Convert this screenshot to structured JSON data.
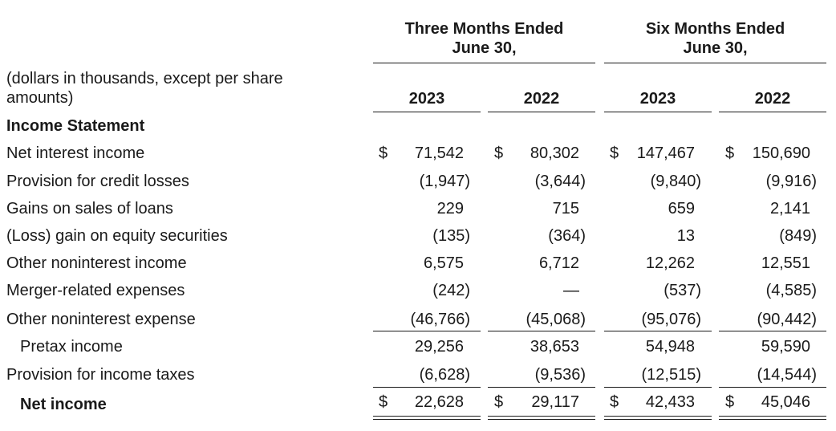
{
  "header": {
    "three_months": "Three Months Ended\nJune 30,",
    "three_months_line1": "Three Months Ended",
    "three_months_line2": "June 30,",
    "six_months_line1": "Six Months Ended",
    "six_months_line2": "June 30,",
    "units_line1": "(dollars in thousands, except per share",
    "units_line2": "amounts)",
    "years": [
      "2023",
      "2022",
      "2023",
      "2022"
    ]
  },
  "section_title": "Income Statement",
  "currency_symbol": "$",
  "rows": [
    {
      "label": "Net interest income",
      "values": [
        "71,542",
        "80,302",
        "147,467",
        "150,690"
      ]
    },
    {
      "label": "Provision for credit losses",
      "values": [
        "(1,947)",
        "(3,644)",
        "(9,840)",
        "(9,916)"
      ]
    },
    {
      "label": "Gains on sales of loans",
      "values": [
        "229",
        "715",
        "659",
        "2,141"
      ]
    },
    {
      "label": "(Loss) gain on equity securities",
      "values": [
        "(135)",
        "(364)",
        "13",
        "(849)"
      ]
    },
    {
      "label": "Other noninterest income",
      "values": [
        "6,575",
        "6,712",
        "12,262",
        "12,551"
      ]
    },
    {
      "label": "Merger-related expenses",
      "values": [
        "(242)",
        "—",
        "(537)",
        "(4,585)"
      ]
    },
    {
      "label": "Other noninterest expense",
      "values": [
        "(46,766)",
        "(45,068)",
        "(95,076)",
        "(90,442)"
      ]
    },
    {
      "label": "Pretax income",
      "values": [
        "29,256",
        "38,653",
        "54,948",
        "59,590"
      ]
    },
    {
      "label": "Provision for income taxes",
      "values": [
        "(6,628)",
        "(9,536)",
        "(12,515)",
        "(14,544)"
      ]
    },
    {
      "label": "Net income",
      "values": [
        "22,628",
        "29,117",
        "42,433",
        "45,046"
      ]
    }
  ]
}
